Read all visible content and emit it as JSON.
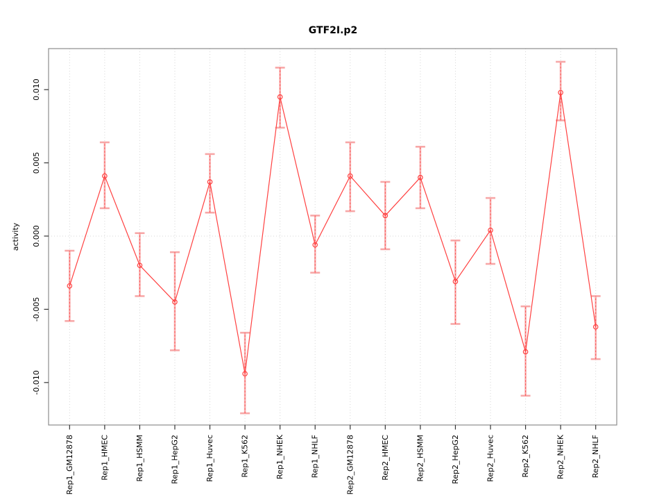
{
  "figure": {
    "title": "GTF2I.p2"
  },
  "chart_data": {
    "type": "line",
    "title": "GTF2I.p2",
    "xlabel": "",
    "ylabel": "activity",
    "legend": "none",
    "grid": {
      "vertical_dotted_per_category": true,
      "horizontal_dotted_at_zero": true
    },
    "ylim": [
      -0.0129,
      0.0128
    ],
    "yticks": [
      -0.01,
      -0.005,
      0.0,
      0.005,
      0.01
    ],
    "ytick_labels": [
      "-0.010",
      "-0.005",
      "0.000",
      "0.005",
      "0.010"
    ],
    "categories": [
      "Rep1_GM12878",
      "Rep1_HMEC",
      "Rep1_HSMM",
      "Rep1_HepG2",
      "Rep1_Huvec",
      "Rep1_K562",
      "Rep1_NHEK",
      "Rep1_NHLF",
      "Rep2_GM12878",
      "Rep2_HMEC",
      "Rep2_HSMM",
      "Rep2_HepG2",
      "Rep2_Huvec",
      "Rep2_K562",
      "Rep2_NHEK",
      "Rep2_NHLF"
    ],
    "series": [
      {
        "name": "activity",
        "marker": "open-circle",
        "values": [
          -0.0034,
          0.0041,
          -0.002,
          -0.0045,
          0.0037,
          -0.0094,
          0.0095,
          -0.0006,
          0.0041,
          0.0014,
          0.004,
          -0.0031,
          0.0004,
          -0.0079,
          0.0098,
          -0.0062
        ],
        "error_low": [
          -0.0058,
          0.0019,
          -0.0041,
          -0.0078,
          0.0016,
          -0.0121,
          0.0074,
          -0.0025,
          0.0017,
          -0.0009,
          0.0019,
          -0.006,
          -0.0019,
          -0.0109,
          0.0079,
          -0.0084
        ],
        "error_high": [
          -0.001,
          0.0064,
          0.0002,
          -0.0011,
          0.0056,
          -0.0066,
          0.0115,
          0.0014,
          0.0064,
          0.0037,
          0.0061,
          -0.0003,
          0.0026,
          -0.0048,
          0.0119,
          -0.0041
        ]
      }
    ],
    "colors": {
      "line": "#FF4040",
      "marker": "#FF4040",
      "error_bar_light": "#F7A3A3",
      "error_bar_dash": "#FF5555",
      "grid": "#D6D6D6",
      "box": "#8C8C8C",
      "tick": "#333333",
      "text": "#000000"
    }
  }
}
